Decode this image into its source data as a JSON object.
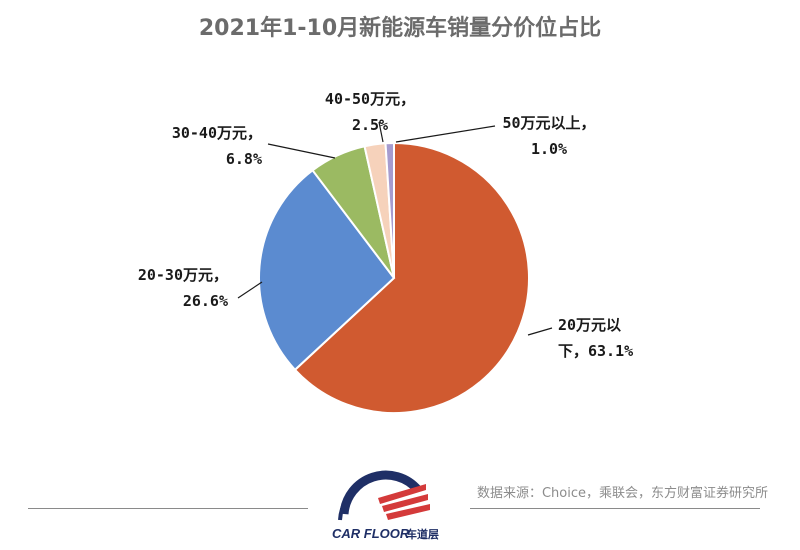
{
  "title": "2021年1-10月新能源车销量分价位占比",
  "source": "数据来源：Choice，乘联会，东方财富证券研究所",
  "logo": {
    "text": "CAR FLOOR",
    "cn": "车道层"
  },
  "chart_data": {
    "type": "pie",
    "title": "2021年1-10月新能源车销量分价位占比",
    "slices": [
      {
        "label_lines": [
          "20万元以",
          "下，63.1%"
        ],
        "category": "20万元以下",
        "value": 63.1,
        "color": "#d05a30"
      },
      {
        "label_lines": [
          "20-30万元，",
          "26.6%"
        ],
        "category": "20-30万元",
        "value": 26.6,
        "color": "#5b8bd0"
      },
      {
        "label_lines": [
          "30-40万元，",
          "6.8%"
        ],
        "category": "30-40万元",
        "value": 6.8,
        "color": "#9bba62"
      },
      {
        "label_lines": [
          "40-50万元，",
          "2.5%"
        ],
        "category": "40-50万元",
        "value": 2.5,
        "color": "#f6d2bb"
      },
      {
        "label_lines": [
          "50万元以上，",
          "1.0%"
        ],
        "category": "50万元以上",
        "value": 1.0,
        "color": "#a69ccf"
      }
    ]
  }
}
